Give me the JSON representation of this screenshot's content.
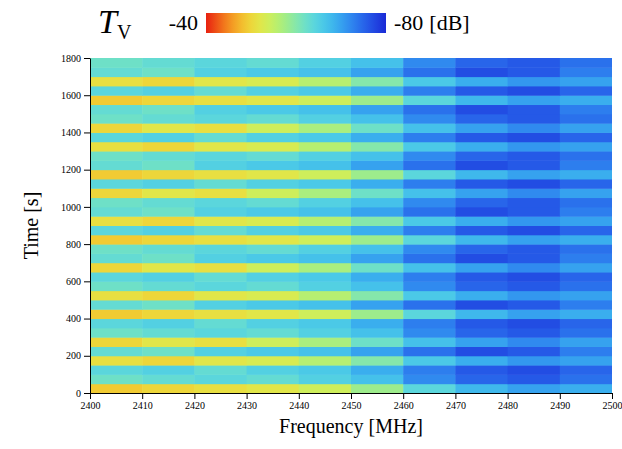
{
  "chart_data": {
    "type": "heatmap",
    "title": "T",
    "title_subscript": "V",
    "x_label": "Frequency [MHz]",
    "y_label": "Time [s]",
    "xlim": [
      2400,
      2500
    ],
    "ylim": [
      0,
      1800
    ],
    "xticks": [
      2400,
      2410,
      2420,
      2430,
      2440,
      2450,
      2460,
      2470,
      2480,
      2490,
      2500
    ],
    "yticks": [
      0,
      200,
      400,
      600,
      800,
      1000,
      1200,
      1400,
      1600,
      1800
    ],
    "grid": false,
    "x": [
      2405,
      2415,
      2425,
      2435,
      2445,
      2455,
      2465,
      2475,
      2485,
      2495
    ],
    "y": [
      25,
      75,
      125,
      175,
      225,
      275,
      325,
      375,
      425,
      475,
      525,
      575,
      625,
      675,
      725,
      775,
      825,
      875,
      925,
      975,
      1025,
      1075,
      1125,
      1175,
      1225,
      1275,
      1325,
      1375,
      1425,
      1475,
      1525,
      1575,
      1625,
      1675,
      1725,
      1775
    ],
    "z": [
      [
        -49,
        -50,
        -51,
        -52,
        -54,
        -58,
        -64,
        -68,
        -70,
        -69
      ],
      [
        -62,
        -63,
        -64,
        -63,
        -65,
        -67,
        -72,
        -75,
        -76,
        -74
      ],
      [
        -64,
        -65,
        -63,
        -65,
        -66,
        -69,
        -73,
        -76,
        -77,
        -75
      ],
      [
        -51,
        -50,
        -52,
        -53,
        -56,
        -60,
        -66,
        -69,
        -71,
        -70
      ],
      [
        -63,
        -62,
        -65,
        -66,
        -67,
        -70,
        -74,
        -77,
        -76,
        -73
      ],
      [
        -50,
        -52,
        -51,
        -54,
        -57,
        -62,
        -67,
        -70,
        -72,
        -70
      ],
      [
        -62,
        -63,
        -64,
        -63,
        -65,
        -67,
        -72,
        -75,
        -76,
        -74
      ],
      [
        -64,
        -65,
        -63,
        -65,
        -66,
        -69,
        -73,
        -76,
        -77,
        -75
      ],
      [
        -49,
        -50,
        -51,
        -52,
        -54,
        -58,
        -64,
        -68,
        -70,
        -69
      ],
      [
        -63,
        -62,
        -65,
        -66,
        -67,
        -70,
        -74,
        -77,
        -76,
        -73
      ],
      [
        -51,
        -50,
        -52,
        -53,
        -56,
        -60,
        -66,
        -69,
        -71,
        -70
      ],
      [
        -62,
        -63,
        -64,
        -63,
        -65,
        -67,
        -72,
        -75,
        -76,
        -74
      ],
      [
        -64,
        -65,
        -63,
        -65,
        -66,
        -69,
        -73,
        -76,
        -77,
        -75
      ],
      [
        -50,
        -52,
        -51,
        -54,
        -57,
        -62,
        -67,
        -70,
        -72,
        -70
      ],
      [
        -63,
        -62,
        -65,
        -66,
        -67,
        -70,
        -74,
        -77,
        -76,
        -73
      ],
      [
        -62,
        -63,
        -64,
        -63,
        -65,
        -67,
        -72,
        -75,
        -76,
        -74
      ],
      [
        -49,
        -50,
        -51,
        -52,
        -54,
        -58,
        -64,
        -68,
        -70,
        -69
      ],
      [
        -64,
        -65,
        -63,
        -65,
        -66,
        -69,
        -73,
        -76,
        -77,
        -75
      ],
      [
        -51,
        -50,
        -52,
        -53,
        -56,
        -60,
        -66,
        -69,
        -71,
        -70
      ],
      [
        -63,
        -62,
        -65,
        -66,
        -67,
        -70,
        -74,
        -77,
        -76,
        -73
      ],
      [
        -62,
        -63,
        -64,
        -63,
        -65,
        -67,
        -72,
        -75,
        -76,
        -74
      ],
      [
        -50,
        -52,
        -51,
        -54,
        -57,
        -62,
        -67,
        -70,
        -72,
        -70
      ],
      [
        -64,
        -65,
        -63,
        -65,
        -66,
        -69,
        -73,
        -76,
        -77,
        -75
      ],
      [
        -49,
        -50,
        -51,
        -52,
        -54,
        -58,
        -64,
        -68,
        -70,
        -69
      ],
      [
        -63,
        -62,
        -65,
        -66,
        -67,
        -70,
        -74,
        -77,
        -76,
        -73
      ],
      [
        -62,
        -63,
        -64,
        -63,
        -65,
        -67,
        -72,
        -75,
        -76,
        -74
      ],
      [
        -51,
        -50,
        -52,
        -53,
        -56,
        -60,
        -66,
        -69,
        -71,
        -70
      ],
      [
        -64,
        -65,
        -63,
        -65,
        -66,
        -69,
        -73,
        -76,
        -77,
        -75
      ],
      [
        -50,
        -52,
        -51,
        -54,
        -57,
        -62,
        -67,
        -70,
        -72,
        -70
      ],
      [
        -62,
        -63,
        -64,
        -63,
        -65,
        -67,
        -72,
        -75,
        -76,
        -74
      ],
      [
        -63,
        -62,
        -65,
        -66,
        -67,
        -70,
        -74,
        -77,
        -76,
        -73
      ],
      [
        -49,
        -50,
        -51,
        -52,
        -54,
        -58,
        -64,
        -68,
        -70,
        -69
      ],
      [
        -64,
        -65,
        -63,
        -65,
        -66,
        -69,
        -73,
        -76,
        -77,
        -75
      ],
      [
        -51,
        -50,
        -52,
        -53,
        -56,
        -60,
        -66,
        -69,
        -71,
        -70
      ],
      [
        -63,
        -62,
        -65,
        -66,
        -67,
        -70,
        -74,
        -77,
        -76,
        -73
      ],
      [
        -62,
        -63,
        -64,
        -63,
        -65,
        -67,
        -72,
        -75,
        -76,
        -74
      ]
    ],
    "colorbar": {
      "range": [
        -40,
        -80
      ],
      "ticks": [
        -40,
        -80
      ],
      "label": "[dB]"
    }
  }
}
